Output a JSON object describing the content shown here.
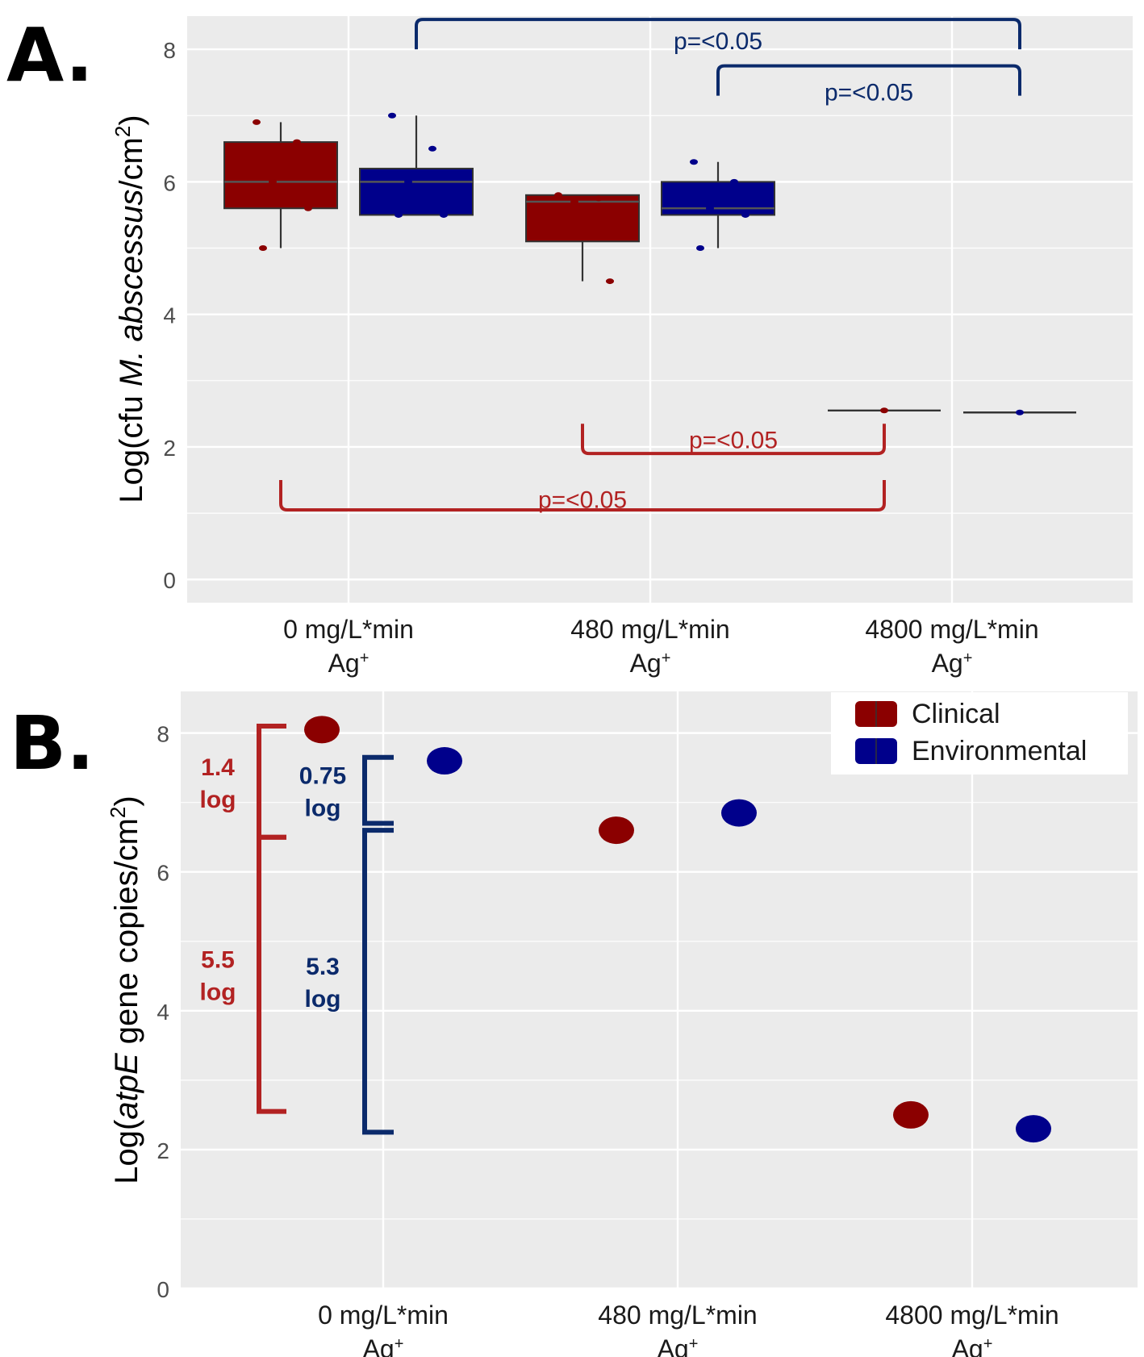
{
  "colors": {
    "clinical": "#8b0000",
    "environmental": "#00008b",
    "clinical_annot": "#b22222",
    "environmental_annot": "#0b2a6b",
    "panel_bg": "#ebebeb",
    "grid": "#ffffff",
    "box_line": "#333333"
  },
  "legend": {
    "items": [
      {
        "label": "Clinical",
        "color": "#8b0000"
      },
      {
        "label": "Environmental",
        "color": "#00008b"
      }
    ],
    "position": "top-right of panel B"
  },
  "chart_data": [
    {
      "panel": "A.",
      "type": "box",
      "ylabel_pre": "Log(cfu ",
      "ylabel_italic": "M. abscessus",
      "ylabel_post": "/cm",
      "ylabel_sup": "2",
      "ylabel_close": ")",
      "ylim": [
        -0.35,
        8.5
      ],
      "yticks": [
        0,
        2,
        4,
        6,
        8
      ],
      "grid": true,
      "categories": [
        {
          "line1": "0 mg/L*min",
          "line2": "Ag",
          "sup": "+"
        },
        {
          "line1": "480 mg/L*min",
          "line2": "Ag",
          "sup": "+"
        },
        {
          "line1": "4800 mg/L*min",
          "line2": "Ag",
          "sup": "+"
        }
      ],
      "series": [
        {
          "name": "Clinical",
          "boxes": [
            {
              "category": 0,
              "min": 5.0,
              "q1": 5.6,
              "median": 6.0,
              "q3": 6.6,
              "max": 6.9,
              "points": [
                6.9,
                6.6,
                6.0,
                5.6,
                5.0
              ]
            },
            {
              "category": 1,
              "min": 4.5,
              "q1": 5.1,
              "median": 5.7,
              "q3": 5.8,
              "max": 5.8,
              "points": [
                5.8,
                5.75,
                5.7,
                4.5
              ]
            },
            {
              "category": 2,
              "min": 2.55,
              "q1": 2.55,
              "median": 2.55,
              "q3": 2.55,
              "max": 2.55,
              "points": [
                2.55
              ]
            }
          ]
        },
        {
          "name": "Environmental",
          "boxes": [
            {
              "category": 0,
              "min": 5.5,
              "q1": 5.5,
              "median": 6.0,
              "q3": 6.2,
              "max": 7.0,
              "points": [
                7.0,
                6.5,
                6.0,
                5.5,
                5.5
              ]
            },
            {
              "category": 1,
              "min": 5.0,
              "q1": 5.5,
              "median": 5.6,
              "q3": 6.0,
              "max": 6.3,
              "points": [
                6.3,
                6.0,
                5.6,
                5.5,
                5.0
              ]
            },
            {
              "category": 2,
              "min": 2.52,
              "q1": 2.52,
              "median": 2.52,
              "q3": 2.52,
              "max": 2.52,
              "points": [
                2.52
              ]
            }
          ]
        }
      ],
      "significance": [
        {
          "text": "p=<0.05",
          "series": "Environmental",
          "from_category": 0,
          "to_category": 2,
          "y_bar": 8.45,
          "y_end": 8.0,
          "label_y": 8.12
        },
        {
          "text": "p=<0.05",
          "series": "Environmental",
          "from_category": 1,
          "to_category": 2,
          "y_bar": 7.75,
          "y_end": 7.3,
          "label_y": 7.35
        },
        {
          "text": "p=<0.05",
          "series": "Clinical",
          "from_category": 1,
          "to_category": 2,
          "y_bar": 1.9,
          "y_end": 2.35,
          "label_y": 2.1
        },
        {
          "text": "p=<0.05",
          "series": "Clinical",
          "from_category": 0,
          "to_category": 2,
          "y_bar": 1.05,
          "y_end": 1.5,
          "label_y": 1.2
        }
      ]
    },
    {
      "panel": "B.",
      "type": "scatter",
      "ylabel_pre": "Log(",
      "ylabel_italic": "atpE",
      "ylabel_post": " gene copies/cm",
      "ylabel_sup": "2",
      "ylabel_close": ")",
      "ylim": [
        0,
        8.6
      ],
      "yticks": [
        0,
        2,
        4,
        6,
        8
      ],
      "grid": true,
      "categories": [
        {
          "line1": "0 mg/L*min",
          "line2": "Ag",
          "sup": "+"
        },
        {
          "line1": "480 mg/L*min",
          "line2": "Ag",
          "sup": "+"
        },
        {
          "line1": "4800 mg/L*min",
          "line2": "Ag",
          "sup": "+"
        }
      ],
      "series": [
        {
          "name": "Clinical",
          "values": [
            8.05,
            6.6,
            2.5
          ]
        },
        {
          "name": "Environmental",
          "values": [
            7.6,
            6.85,
            2.3
          ]
        }
      ],
      "annotations": [
        {
          "lines": [
            "1.4",
            "log"
          ],
          "series": "Clinical",
          "y_from": 6.5,
          "y_to": 8.1
        },
        {
          "lines": [
            "5.5",
            "log"
          ],
          "series": "Clinical",
          "y_from": 2.55,
          "y_to": 6.5
        },
        {
          "lines": [
            "0.75",
            "log"
          ],
          "series": "Environmental",
          "y_from": 6.7,
          "y_to": 7.65
        },
        {
          "lines": [
            "5.3",
            "log"
          ],
          "series": "Environmental",
          "y_from": 2.25,
          "y_to": 6.6
        }
      ]
    }
  ]
}
